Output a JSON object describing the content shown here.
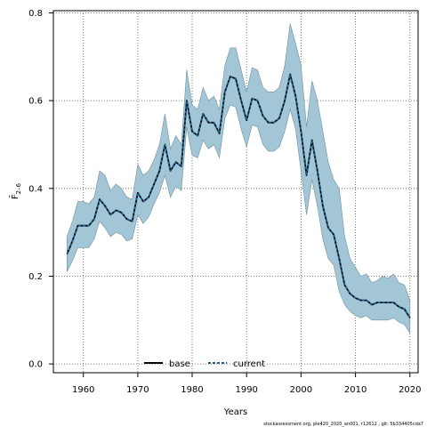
{
  "chart_data": {
    "type": "line",
    "xlabel": "Years",
    "ylabel": "F̄",
    "ylabel_subscript": "2–6",
    "xlim": [
      1954.5,
      2021.5
    ],
    "ylim": [
      -0.02,
      0.805
    ],
    "x_ticks": [
      1960,
      1970,
      1980,
      1990,
      2000,
      2010,
      2020
    ],
    "y_ticks": [
      0.0,
      0.2,
      0.4,
      0.6,
      0.8
    ],
    "y_tick_labels": [
      "0.0",
      "0.2",
      "0.4",
      "0.6",
      "0.8"
    ],
    "grid": true,
    "legend_position": "bottom-center",
    "x": [
      1957,
      1958,
      1959,
      1960,
      1961,
      1962,
      1963,
      1964,
      1965,
      1966,
      1967,
      1968,
      1969,
      1970,
      1971,
      1972,
      1973,
      1974,
      1975,
      1976,
      1977,
      1978,
      1979,
      1980,
      1981,
      1982,
      1983,
      1984,
      1985,
      1986,
      1987,
      1988,
      1989,
      1990,
      1991,
      1992,
      1993,
      1994,
      1995,
      1996,
      1997,
      1998,
      1999,
      2000,
      2001,
      2002,
      2003,
      2004,
      2005,
      2006,
      2007,
      2008,
      2009,
      2010,
      2011,
      2012,
      2013,
      2014,
      2015,
      2016,
      2017,
      2018,
      2019,
      2020
    ],
    "series": [
      {
        "name": "base",
        "color": "#000000",
        "values": [
          0.25,
          0.28,
          0.315,
          0.315,
          0.315,
          0.33,
          0.375,
          0.36,
          0.34,
          0.35,
          0.345,
          0.33,
          0.325,
          0.39,
          0.37,
          0.38,
          0.41,
          0.44,
          0.5,
          0.44,
          0.46,
          0.45,
          0.6,
          0.53,
          0.52,
          0.57,
          0.55,
          0.55,
          0.525,
          0.62,
          0.655,
          0.65,
          0.6,
          0.555,
          0.605,
          0.6,
          0.565,
          0.55,
          0.55,
          0.56,
          0.6,
          0.66,
          0.61,
          0.53,
          0.43,
          0.51,
          0.44,
          0.36,
          0.31,
          0.295,
          0.24,
          0.18,
          0.16,
          0.15,
          0.145,
          0.145,
          0.135,
          0.14,
          0.14,
          0.14,
          0.14,
          0.13,
          0.125,
          0.105
        ]
      },
      {
        "name": "current",
        "color": "#1f5f8b",
        "values": [
          0.25,
          0.28,
          0.315,
          0.315,
          0.315,
          0.33,
          0.375,
          0.36,
          0.34,
          0.35,
          0.345,
          0.33,
          0.325,
          0.39,
          0.37,
          0.38,
          0.41,
          0.44,
          0.5,
          0.44,
          0.46,
          0.45,
          0.6,
          0.53,
          0.52,
          0.57,
          0.55,
          0.55,
          0.525,
          0.62,
          0.655,
          0.65,
          0.6,
          0.555,
          0.605,
          0.6,
          0.565,
          0.55,
          0.55,
          0.56,
          0.6,
          0.66,
          0.61,
          0.53,
          0.43,
          0.51,
          0.44,
          0.36,
          0.31,
          0.295,
          0.24,
          0.18,
          0.16,
          0.15,
          0.145,
          0.145,
          0.135,
          0.14,
          0.14,
          0.14,
          0.14,
          0.13,
          0.125,
          0.105
        ]
      }
    ],
    "band": {
      "color": "#a3c6d6",
      "lower": [
        0.21,
        0.235,
        0.265,
        0.265,
        0.265,
        0.285,
        0.325,
        0.31,
        0.29,
        0.3,
        0.295,
        0.28,
        0.285,
        0.34,
        0.32,
        0.335,
        0.365,
        0.39,
        0.43,
        0.38,
        0.405,
        0.395,
        0.54,
        0.475,
        0.47,
        0.51,
        0.49,
        0.5,
        0.47,
        0.56,
        0.59,
        0.585,
        0.535,
        0.495,
        0.545,
        0.54,
        0.5,
        0.485,
        0.485,
        0.495,
        0.53,
        0.58,
        0.535,
        0.44,
        0.34,
        0.42,
        0.36,
        0.285,
        0.24,
        0.225,
        0.165,
        0.135,
        0.12,
        0.11,
        0.105,
        0.11,
        0.1,
        0.1,
        0.1,
        0.1,
        0.105,
        0.095,
        0.09,
        0.07
      ],
      "upper": [
        0.29,
        0.325,
        0.37,
        0.37,
        0.365,
        0.38,
        0.44,
        0.43,
        0.395,
        0.41,
        0.4,
        0.38,
        0.375,
        0.455,
        0.43,
        0.44,
        0.465,
        0.5,
        0.57,
        0.49,
        0.52,
        0.5,
        0.67,
        0.59,
        0.58,
        0.63,
        0.6,
        0.61,
        0.58,
        0.68,
        0.72,
        0.72,
        0.67,
        0.62,
        0.675,
        0.67,
        0.63,
        0.62,
        0.62,
        0.63,
        0.68,
        0.775,
        0.73,
        0.68,
        0.54,
        0.645,
        0.6,
        0.53,
        0.46,
        0.42,
        0.4,
        0.29,
        0.24,
        0.22,
        0.2,
        0.205,
        0.185,
        0.19,
        0.2,
        0.195,
        0.205,
        0.185,
        0.18,
        0.145
      ]
    }
  },
  "legend": [
    {
      "label": "base",
      "style": "solid",
      "color": "#000000"
    },
    {
      "label": "current",
      "style": "dashed",
      "color": "#1f5f8b"
    }
  ],
  "footer": "stockassessment.org, ple420_2020_an001, r12612 , git: 5b334405cda7"
}
